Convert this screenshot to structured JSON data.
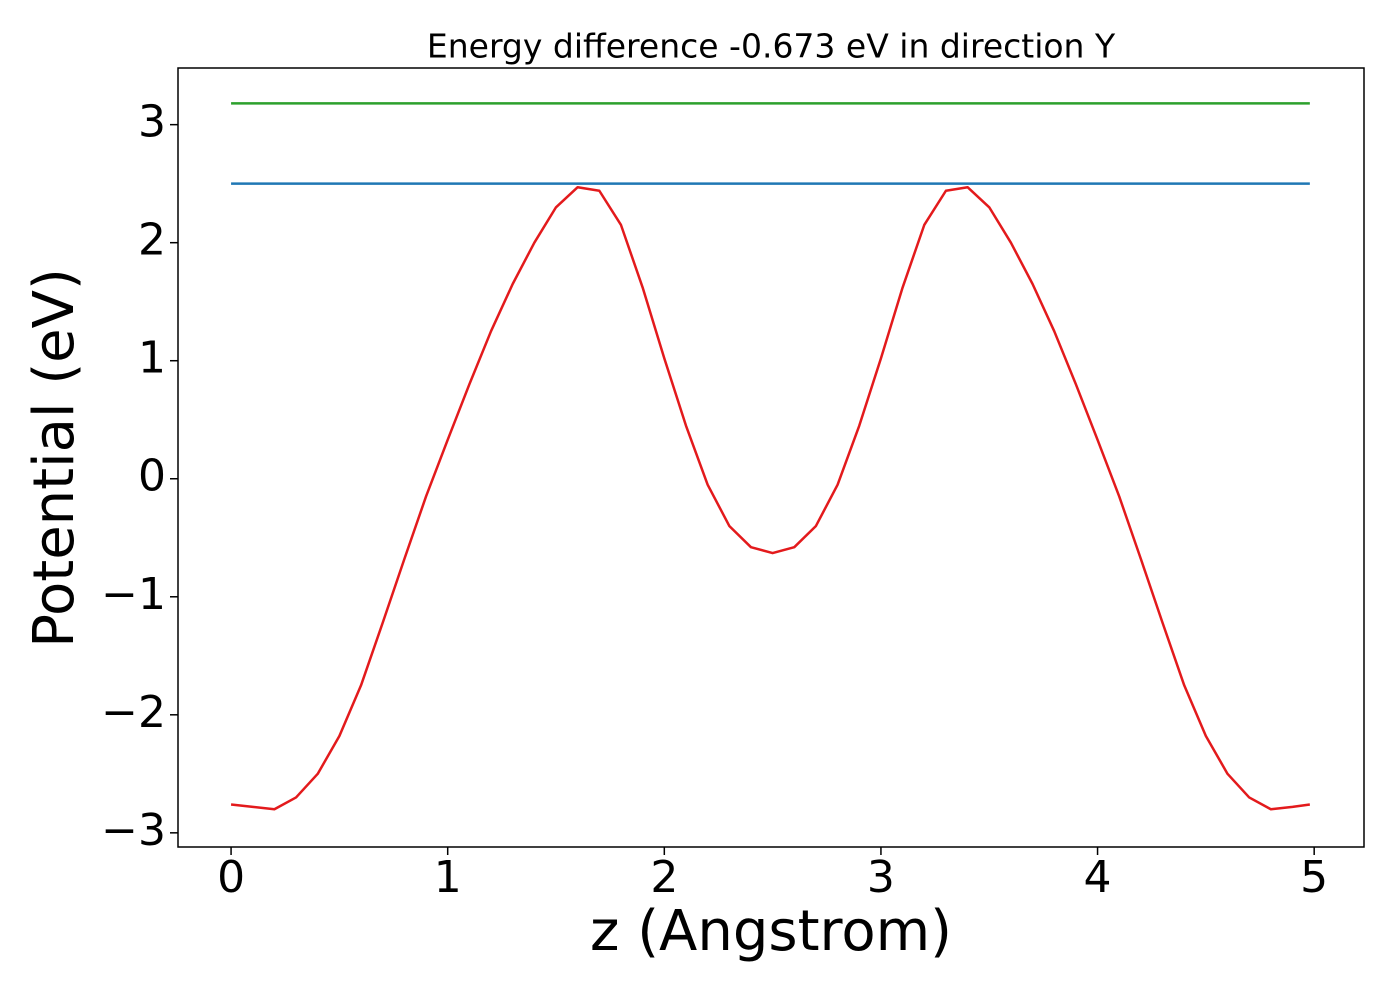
{
  "chart_data": {
    "type": "line",
    "title": "Energy difference -0.673 eV in direction Y",
    "x_label": "z (Angstrom)",
    "y_label": "Potential (eV)",
    "xlim": [
      -0.245,
      5.23
    ],
    "ylim": [
      -3.12,
      3.48
    ],
    "xticks": [
      0,
      1,
      2,
      3,
      4,
      5
    ],
    "yticks": [
      {
        "value": -3,
        "label": "−3"
      },
      {
        "value": -2,
        "label": "−2"
      },
      {
        "value": -1,
        "label": "−1"
      },
      0,
      1,
      2,
      3
    ],
    "grid": false,
    "series": [
      {
        "color": "#2ca02c",
        "x": [
          0,
          4.98
        ],
        "values": [
          3.18,
          3.18
        ]
      },
      {
        "color": "#1f77b4",
        "x": [
          0,
          4.98
        ],
        "values": [
          2.5,
          2.5
        ]
      },
      {
        "color": "#e31a1c",
        "x": [
          0,
          0.1,
          0.2,
          0.3,
          0.4,
          0.5,
          0.6,
          0.7,
          0.8,
          0.9,
          1.0,
          1.1,
          1.2,
          1.3,
          1.4,
          1.5,
          1.6,
          1.7,
          1.8,
          1.9,
          2.0,
          2.1,
          2.2,
          2.3,
          2.4,
          2.5,
          2.6,
          2.7,
          2.8,
          2.9,
          3.0,
          3.1,
          3.2,
          3.3,
          3.4,
          3.5,
          3.6,
          3.7,
          3.8,
          3.9,
          4.0,
          4.1,
          4.2,
          4.3,
          4.4,
          4.5,
          4.6,
          4.7,
          4.8,
          4.9,
          4.98
        ],
        "values": [
          -2.76,
          -2.78,
          -2.8,
          -2.7,
          -2.5,
          -2.18,
          -1.75,
          -1.22,
          -0.68,
          -0.15,
          0.33,
          0.8,
          1.25,
          1.65,
          2.0,
          2.3,
          2.47,
          2.44,
          2.15,
          1.62,
          1.02,
          0.45,
          -0.05,
          -0.4,
          -0.58,
          -0.63,
          -0.58,
          -0.4,
          -0.05,
          0.45,
          1.02,
          1.62,
          2.15,
          2.44,
          2.47,
          2.3,
          2.0,
          1.65,
          1.25,
          0.8,
          0.33,
          -0.15,
          -0.68,
          -1.22,
          -1.75,
          -2.18,
          -2.5,
          -2.7,
          -2.8,
          -2.78,
          -2.76
        ]
      }
    ]
  }
}
